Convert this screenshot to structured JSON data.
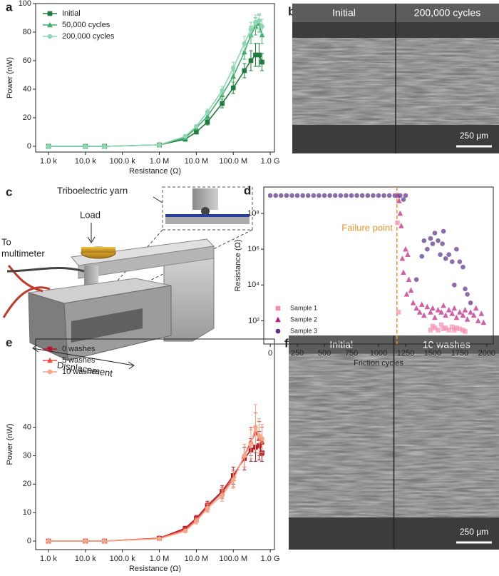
{
  "chart_data": [
    {
      "type": "line",
      "panel": "a",
      "xlabel": "Resistance (Ω)",
      "ylabel": "Power (nW)",
      "xlog": true,
      "legend": "upper left",
      "xlim": [
        450,
        1300000000
      ],
      "ylim": [
        -4,
        100
      ],
      "xticks": [
        {
          "value": 1000,
          "label": "1.0 k"
        },
        {
          "value": 10000,
          "label": "10.0 k"
        },
        {
          "value": 100000,
          "label": "100.0 k"
        },
        {
          "value": 1000000,
          "label": "1.0 M"
        },
        {
          "value": 10000000,
          "label": "10.0 M"
        },
        {
          "value": 100000000,
          "label": "100.0 M"
        },
        {
          "value": 1000000000,
          "label": "1.0 G"
        }
      ],
      "yticks": [
        0,
        20,
        40,
        60,
        80,
        100
      ],
      "x": [
        1000,
        10000,
        33000,
        1000000,
        5000000,
        10000000,
        20000000,
        50000000,
        100000000,
        200000000,
        300000000,
        400000000,
        500000000,
        600000000
      ],
      "series": [
        {
          "name": "Initial",
          "color": "#1e7b3c",
          "marker": "square",
          "values": [
            0,
            0,
            0,
            1,
            5,
            10,
            17,
            30,
            41,
            53,
            60,
            64,
            64,
            59
          ],
          "errors": [
            0,
            0,
            0,
            0.2,
            0.5,
            1,
            2,
            3,
            4,
            5,
            7,
            8,
            8,
            6
          ]
        },
        {
          "name": "50,000 cycles",
          "color": "#3fae6a",
          "marker": "triangle",
          "values": [
            0,
            0,
            0,
            1,
            6,
            13,
            21,
            36,
            49,
            66,
            78,
            84,
            86,
            78
          ],
          "errors": [
            0,
            0,
            0,
            0.2,
            0.5,
            1,
            2,
            3,
            4,
            5,
            6,
            6,
            6,
            6
          ]
        },
        {
          "name": "200,000 cycles",
          "color": "#8fd6b4",
          "marker": "circle",
          "values": [
            0,
            0,
            0,
            1,
            7,
            14,
            24,
            39,
            55,
            72,
            82,
            87,
            88,
            84
          ],
          "errors": [
            0,
            0,
            0,
            0.2,
            0.5,
            1,
            2,
            3,
            4,
            5,
            5,
            5,
            5,
            5
          ]
        }
      ]
    },
    {
      "type": "scatter",
      "panel": "d",
      "xlabel": "Friction cycles",
      "ylabel": "Resistance (Ω)",
      "ylog": true,
      "legend": "lower left",
      "xlim": [
        -60,
        2060
      ],
      "ylim": [
        5,
        3000000000
      ],
      "xticks": [
        0,
        250,
        500,
        750,
        1000,
        1250,
        1500,
        1750,
        2000
      ],
      "yticks": [
        {
          "value": 100,
          "label": "10²"
        },
        {
          "value": 10000,
          "label": "10⁴"
        },
        {
          "value": 1000000,
          "label": "10⁶"
        },
        {
          "value": 100000000,
          "label": "10⁸"
        }
      ],
      "annotation": "Failure point",
      "failure_x": 1170,
      "annotation_color": "#f0922e",
      "series": [
        {
          "name": "Sample 1",
          "color": "#f48fb1",
          "marker": "square",
          "x": [
            1175,
            1185,
            1480,
            1500,
            1520,
            1550,
            1580,
            1600,
            1620,
            1650,
            1680,
            1700,
            1720,
            1750,
            1780,
            1800
          ],
          "values": [
            30000000,
            300,
            30,
            50,
            40,
            30,
            60,
            35,
            40,
            30,
            45,
            30,
            40,
            35,
            30,
            25
          ]
        },
        {
          "name": "Sample 2",
          "color": "#c2187f",
          "marker": "triangle",
          "x": [
            1180,
            1190,
            1200,
            1210,
            1220,
            1230,
            1250,
            1260,
            1270,
            1280,
            1300,
            1320,
            1350,
            1380,
            1400,
            1420,
            1450,
            1480,
            1500,
            1520,
            1550,
            1580,
            1600,
            1620,
            1650,
            1680,
            1700,
            1720,
            1750,
            1780,
            1800,
            1820,
            1850,
            1880,
            1900,
            1920,
            1950,
            1970
          ],
          "values": [
            1000000000,
            500000000,
            100000000,
            20000000,
            300000,
            50000,
            1000000,
            3000,
            500000,
            20000,
            5000,
            1000,
            500,
            300,
            800,
            200,
            600,
            300,
            500,
            150,
            400,
            300,
            700,
            200,
            400,
            250,
            500,
            150,
            300,
            200,
            400,
            120,
            300,
            200,
            500,
            100,
            250,
            80
          ]
        },
        {
          "name": "Sample 3",
          "color": "#5a2d86",
          "marker": "circle",
          "x": [
            0,
            50,
            100,
            150,
            200,
            250,
            300,
            350,
            400,
            450,
            500,
            550,
            600,
            650,
            700,
            750,
            800,
            850,
            900,
            950,
            1000,
            1050,
            1100,
            1150,
            1200,
            1250,
            1230,
            1350,
            1400,
            1420,
            1450,
            1480,
            1500,
            1520,
            1550,
            1570,
            1590,
            1600,
            1620,
            1650,
            1680,
            1700,
            1720,
            1750,
            1780,
            1800,
            1820,
            1850
          ],
          "values": [
            1000000000,
            1000000000,
            1000000000,
            1000000000,
            1000000000,
            1000000000,
            1000000000,
            1000000000,
            1000000000,
            1000000000,
            1000000000,
            1000000000,
            1000000000,
            1000000000,
            1000000000,
            1000000000,
            1000000000,
            1000000000,
            1000000000,
            1000000000,
            1000000000,
            1000000000,
            1000000000,
            1000000000,
            1000000000,
            1000000000,
            600000000,
            20000,
            400000,
            3000000,
            1000000,
            4000000,
            2000000,
            8000000,
            3000000,
            500000,
            2000000,
            10000000,
            300000,
            500000,
            200000,
            10000,
            1000000,
            200000,
            100000,
            6000,
            3000,
            1000
          ]
        }
      ]
    },
    {
      "type": "line",
      "panel": "e",
      "xlabel": "Resistance (Ω)",
      "ylabel": "Power (nW)",
      "xlog": true,
      "legend": "upper left",
      "xlim": [
        450,
        1300000000
      ],
      "ylim": [
        -3,
        71
      ],
      "xticks": [
        {
          "value": 1000,
          "label": "1.0 k"
        },
        {
          "value": 10000,
          "label": "10.0 k"
        },
        {
          "value": 100000,
          "label": "100.0 k"
        },
        {
          "value": 1000000,
          "label": "1.0 M"
        },
        {
          "value": 10000000,
          "label": "10.0 M"
        },
        {
          "value": 100000000,
          "label": "100.0 M"
        },
        {
          "value": 1000000000,
          "label": "1.0 G"
        }
      ],
      "yticks": [
        0,
        10,
        20,
        30,
        40
      ],
      "x": [
        1000,
        10000,
        33000,
        1000000,
        5000000,
        10000000,
        20000000,
        50000000,
        100000000,
        200000000,
        300000000,
        400000000,
        500000000,
        600000000
      ],
      "series": [
        {
          "name": "0 washes",
          "color": "#b2182b",
          "marker": "square",
          "values": [
            0,
            0,
            0,
            1,
            4.5,
            8,
            12.5,
            17.5,
            23,
            29,
            32,
            33,
            33.5,
            31
          ],
          "errors": [
            0,
            0,
            0,
            0.2,
            0.5,
            1,
            1.5,
            2,
            3,
            4,
            4,
            5,
            5,
            3
          ]
        },
        {
          "name": "5 washes",
          "color": "#e8483a",
          "marker": "triangle",
          "values": [
            0,
            0,
            0,
            1,
            4,
            7.5,
            12,
            17,
            22,
            30,
            35,
            38,
            36,
            35
          ],
          "errors": [
            0,
            0,
            0,
            0.2,
            0.5,
            1,
            1.5,
            2,
            3,
            4,
            5,
            7,
            6,
            5
          ]
        },
        {
          "name": "10 washes",
          "color": "#f7a688",
          "marker": "circle",
          "values": [
            0,
            0,
            0,
            0.8,
            3.5,
            7,
            11.5,
            16,
            21.5,
            30,
            34,
            40,
            37,
            36
          ],
          "errors": [
            0,
            0,
            0,
            0.2,
            0.5,
            1,
            1.5,
            2,
            3,
            4,
            5,
            8,
            6,
            5
          ]
        }
      ]
    }
  ],
  "images": [
    {
      "panel": "b",
      "left": "Initial",
      "right": "200,000 cycles",
      "scale_bar": "250 µm"
    },
    {
      "panel": "f",
      "left": "Initial",
      "right": "10 washes",
      "scale_bar": "250 µm"
    }
  ],
  "diagram": {
    "panel": "c",
    "yarn": "Triboelectric yarn",
    "load": "Load",
    "multimeter": [
      "To",
      "multimeter"
    ],
    "displacement": "Displacement"
  }
}
